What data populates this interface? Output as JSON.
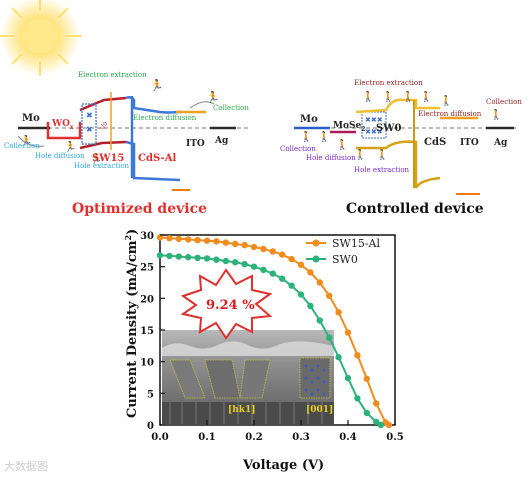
{
  "left_panel": {
    "caption": "Optimized device",
    "labels": {
      "mo": "Mo",
      "wo": "WO",
      "wo_sub": "x",
      "sw15": "SW15",
      "cds": "CdS-Al",
      "ito": "ITO",
      "ag": "Ag",
      "vol": "Vo"
    },
    "processes": {
      "electron_extraction": "Electron extraction",
      "electron_diffusion": "Electron diffusion",
      "collection_right": "Collection",
      "collection_left": "Collection",
      "hole_diffusion": "Hole diffusion",
      "hole_extraction": "Hole extraction"
    }
  },
  "right_panel": {
    "caption": "Controlled device",
    "labels": {
      "mo": "Mo",
      "mose": "MoSe",
      "mose_sub": "2",
      "sw0": "SW0",
      "cds": "CdS",
      "ito": "ITO",
      "ag": "Ag"
    },
    "processes": {
      "electron_extraction": "Electron extraction",
      "electron_diffusion": "Electron diffusion",
      "collection_right": "Collection",
      "collection_left": "Collection",
      "hole_diffusion": "Hole diffusion",
      "hole_extraction": "Hole extraction"
    }
  },
  "chart": {
    "burst_label": "9.24 %",
    "inset_labels": {
      "hk1": "[hk1]",
      "o01": "[001]"
    },
    "watermark": "大数据图",
    "colors": {
      "SW15-Al": "#f08c1e",
      "SW0": "#2db37a"
    }
  },
  "chart_data": {
    "type": "line",
    "xlabel": "Voltage (V)",
    "ylabel": "Current Density (mA/cm",
    "ylabel_sup": "2",
    "ylabel_close": ")",
    "xlim": [
      0.0,
      0.5
    ],
    "ylim": [
      0,
      30
    ],
    "xticks": [
      "0.0",
      "0.1",
      "0.2",
      "0.3",
      "0.4",
      "0.5"
    ],
    "yticks": [
      "0",
      "5",
      "10",
      "15",
      "20",
      "25",
      "30"
    ],
    "legend_position": "top-right",
    "series": [
      {
        "name": "SW15-Al",
        "x": [
          0.0,
          0.02,
          0.04,
          0.06,
          0.08,
          0.1,
          0.12,
          0.14,
          0.16,
          0.18,
          0.2,
          0.22,
          0.24,
          0.26,
          0.28,
          0.3,
          0.32,
          0.34,
          0.36,
          0.38,
          0.4,
          0.42,
          0.44,
          0.46,
          0.48,
          0.487
        ],
        "y": [
          29.6,
          29.5,
          29.4,
          29.3,
          29.2,
          29.1,
          29.0,
          28.8,
          28.6,
          28.4,
          28.1,
          27.8,
          27.4,
          26.9,
          26.2,
          25.3,
          24.1,
          22.5,
          20.4,
          17.8,
          14.6,
          11.0,
          7.3,
          3.4,
          0.4,
          0.0
        ]
      },
      {
        "name": "SW0",
        "x": [
          0.0,
          0.02,
          0.04,
          0.06,
          0.08,
          0.1,
          0.12,
          0.14,
          0.16,
          0.18,
          0.2,
          0.22,
          0.24,
          0.26,
          0.28,
          0.3,
          0.32,
          0.34,
          0.36,
          0.38,
          0.4,
          0.42,
          0.44,
          0.46,
          0.47
        ],
        "y": [
          26.8,
          26.7,
          26.6,
          26.5,
          26.4,
          26.3,
          26.1,
          25.9,
          25.7,
          25.4,
          25.0,
          24.5,
          23.9,
          23.1,
          22.0,
          20.6,
          18.8,
          16.5,
          13.8,
          10.7,
          7.4,
          4.2,
          1.9,
          0.5,
          0.0
        ]
      }
    ]
  }
}
